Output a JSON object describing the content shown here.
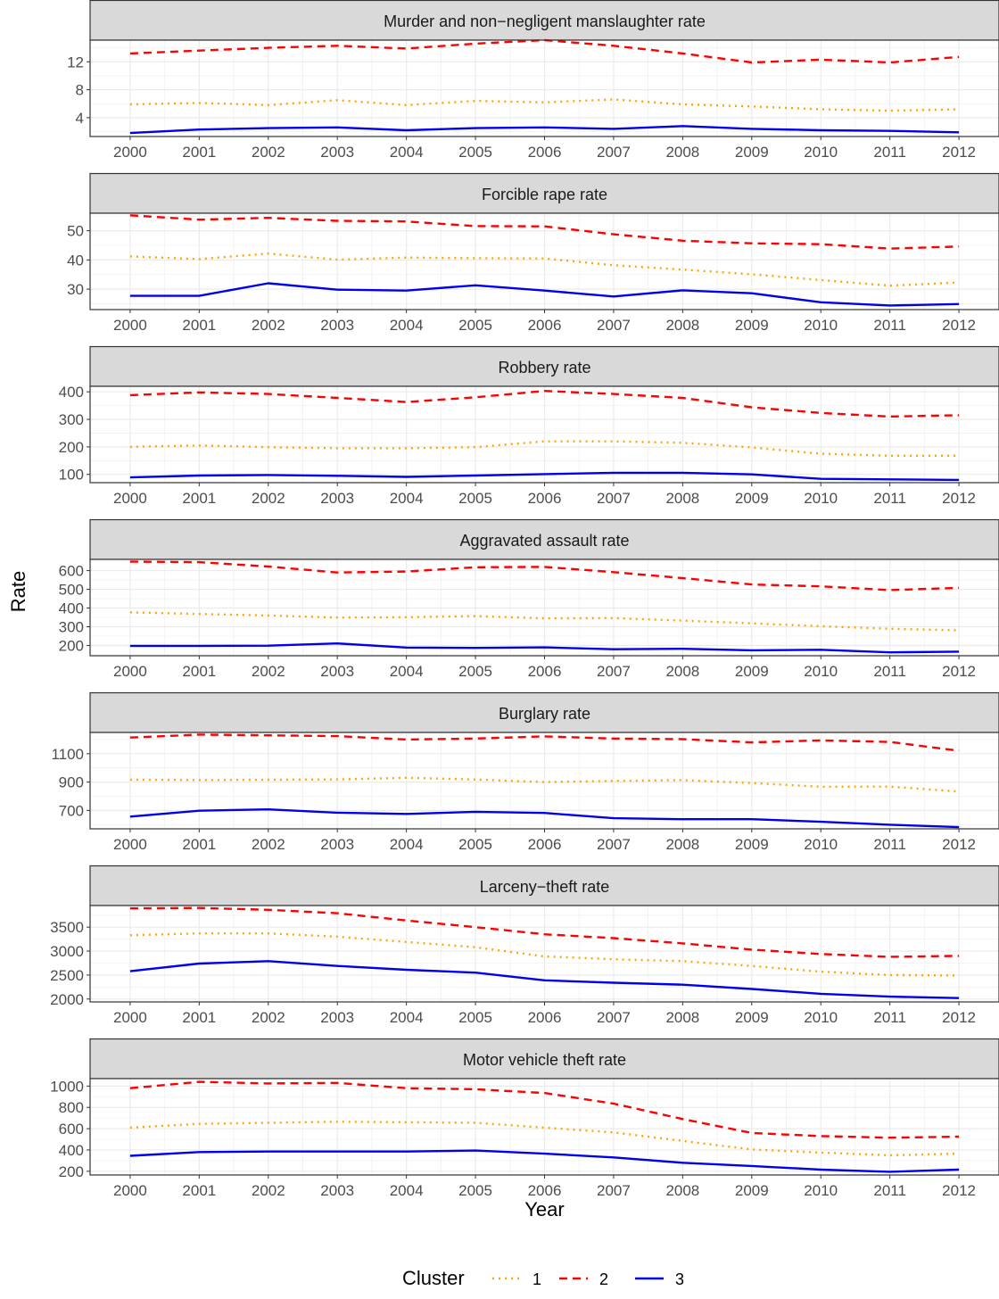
{
  "chart_data": {
    "type": "line",
    "xlabel": "Year",
    "ylabel": "Rate",
    "x": [
      2000,
      2001,
      2002,
      2003,
      2004,
      2005,
      2006,
      2007,
      2008,
      2009,
      2010,
      2011,
      2012
    ],
    "x_tick_labels": [
      "2000",
      "2001",
      "2002",
      "2003",
      "2004",
      "2005",
      "2006",
      "2007",
      "2008",
      "2009",
      "2010",
      "2011",
      "2012"
    ],
    "grid": true,
    "legend": {
      "title": "Cluster",
      "position": "bottom",
      "entries": [
        {
          "label": "1",
          "color": "#FFA500",
          "linetype": "dotted"
        },
        {
          "label": "2",
          "color": "#FF0000",
          "linetype": "dashed"
        },
        {
          "label": "3",
          "color": "#0000EE",
          "linetype": "solid"
        }
      ]
    },
    "panels": [
      {
        "title": "Murder and non−negligent manslaughter rate",
        "ylim": [
          1.3,
          15.1
        ],
        "yticks": [
          4,
          8,
          12
        ],
        "ytick_labels": [
          "4",
          "8",
          "12"
        ],
        "series": [
          {
            "name": "1",
            "values": [
              5.9,
              6.1,
              5.8,
              6.5,
              5.8,
              6.4,
              6.2,
              6.6,
              5.9,
              5.6,
              5.2,
              5.0,
              5.2
            ]
          },
          {
            "name": "2",
            "values": [
              13.2,
              13.6,
              14.0,
              14.3,
              13.9,
              14.6,
              15.1,
              14.3,
              13.2,
              11.9,
              12.3,
              11.9,
              12.7
            ]
          },
          {
            "name": "3",
            "values": [
              1.8,
              2.3,
              2.5,
              2.6,
              2.2,
              2.5,
              2.6,
              2.4,
              2.8,
              2.4,
              2.2,
              2.1,
              1.9
            ]
          }
        ]
      },
      {
        "title": "Forcible rape rate",
        "ylim": [
          23,
          56
        ],
        "yticks": [
          30,
          40,
          50
        ],
        "ytick_labels": [
          "30",
          "40",
          "50"
        ],
        "series": [
          {
            "name": "1",
            "values": [
              41.2,
              40.3,
              42.2,
              40.1,
              40.8,
              40.6,
              40.5,
              38.2,
              36.7,
              35.1,
              33.1,
              31.2,
              32.3
            ]
          },
          {
            "name": "2",
            "values": [
              55.3,
              53.8,
              54.4,
              53.4,
              53.2,
              51.6,
              51.5,
              48.8,
              46.6,
              45.7,
              45.4,
              43.9,
              44.6
            ]
          },
          {
            "name": "3",
            "values": [
              27.7,
              27.7,
              32.0,
              29.8,
              29.5,
              31.3,
              29.5,
              27.5,
              29.6,
              28.6,
              25.5,
              24.4,
              24.9
            ]
          }
        ]
      },
      {
        "title": "Robbery rate",
        "ylim": [
          70,
          420
        ],
        "yticks": [
          100,
          200,
          300,
          400
        ],
        "ytick_labels": [
          "100",
          "200",
          "300",
          "400"
        ],
        "series": [
          {
            "name": "1",
            "values": [
              200,
              205,
              199,
              195,
              195,
              199,
              220,
              220,
              215,
              198,
              175,
              168,
              168
            ]
          },
          {
            "name": "2",
            "values": [
              388,
              398,
              392,
              378,
              363,
              380,
              403,
              392,
              378,
              344,
              323,
              310,
              315
            ]
          },
          {
            "name": "3",
            "values": [
              89,
              96,
              98,
              95,
              91,
              96,
              101,
              106,
              106,
              100,
              84,
              82,
              80
            ]
          }
        ]
      },
      {
        "title": "Aggravated assault rate",
        "ylim": [
          145,
          660
        ],
        "yticks": [
          200,
          300,
          400,
          500,
          600
        ],
        "ytick_labels": [
          "200",
          "300",
          "400",
          "500",
          "600"
        ],
        "series": [
          {
            "name": "1",
            "values": [
              377,
              368,
              360,
              349,
              351,
              357,
              345,
              346,
              333,
              318,
              303,
              289,
              281
            ]
          },
          {
            "name": "2",
            "values": [
              648,
              645,
              622,
              590,
              595,
              618,
              620,
              592,
              560,
              526,
              516,
              496,
              508
            ]
          },
          {
            "name": "3",
            "values": [
              198,
              198,
              199,
              211,
              189,
              187,
              190,
              180,
              182,
              174,
              177,
              163,
              167
            ]
          }
        ]
      },
      {
        "title": "Burglary rate",
        "ylim": [
          570,
          1250
        ],
        "yticks": [
          700,
          900,
          1100
        ],
        "ytick_labels": [
          "700",
          "900",
          "1100"
        ],
        "series": [
          {
            "name": "1",
            "values": [
              917,
              914,
              916,
              919,
              930,
              918,
              900,
              908,
              914,
              893,
              867,
              868,
              833
            ]
          },
          {
            "name": "2",
            "values": [
              1214,
              1235,
              1230,
              1224,
              1200,
              1207,
              1222,
              1207,
              1203,
              1180,
              1194,
              1183,
              1121
            ]
          },
          {
            "name": "3",
            "values": [
              656,
              698,
              707,
              684,
              675,
              690,
              682,
              645,
              638,
              638,
              620,
              599,
              582
            ]
          }
        ]
      },
      {
        "title": "Larceny−theft rate",
        "ylim": [
          1940,
          3950
        ],
        "yticks": [
          2000,
          2500,
          3000,
          3500
        ],
        "ytick_labels": [
          "2000",
          "2500",
          "3000",
          "3500"
        ],
        "series": [
          {
            "name": "1",
            "values": [
              3330,
              3370,
              3370,
              3300,
              3190,
              3080,
              2890,
              2830,
              2790,
              2690,
              2570,
              2500,
              2490
            ]
          },
          {
            "name": "2",
            "values": [
              3890,
              3900,
              3860,
              3790,
              3640,
              3500,
              3350,
              3270,
              3160,
              3030,
              2940,
              2880,
              2900
            ]
          },
          {
            "name": "3",
            "values": [
              2580,
              2740,
              2790,
              2690,
              2610,
              2550,
              2390,
              2340,
              2300,
              2210,
              2110,
              2050,
              2020
            ]
          }
        ]
      },
      {
        "title": "Motor vehicle theft rate",
        "ylim": [
          165,
          1070
        ],
        "yticks": [
          200,
          400,
          600,
          800,
          1000
        ],
        "ytick_labels": [
          "200",
          "400",
          "600",
          "800",
          "1000"
        ],
        "series": [
          {
            "name": "1",
            "values": [
              610,
              645,
              655,
              665,
              660,
              655,
              610,
              565,
              485,
              405,
              375,
              350,
              365
            ]
          },
          {
            "name": "2",
            "values": [
              980,
              1040,
              1025,
              1030,
              980,
              970,
              935,
              835,
              690,
              560,
              530,
              515,
              525
            ]
          },
          {
            "name": "3",
            "values": [
              345,
              380,
              385,
              385,
              385,
              395,
              365,
              330,
              280,
              250,
              215,
              195,
              215
            ]
          }
        ]
      }
    ]
  }
}
